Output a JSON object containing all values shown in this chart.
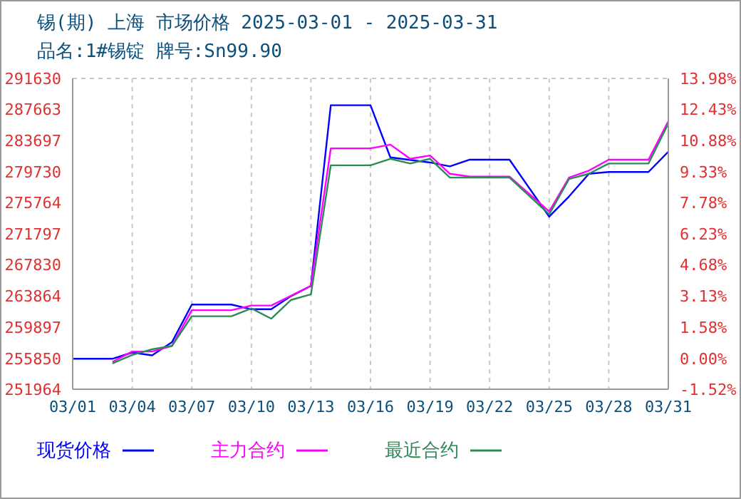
{
  "chart_data": {
    "type": "line",
    "title": "锡(期) 上海 市场价格 2025-03-01 - 2025-03-31",
    "subtitle": "品名:1#锡锭 牌号:Sn99.90",
    "xlim": [
      "2025-03-01",
      "2025-03-31"
    ],
    "xticks": [
      {
        "value": "2025-03-01",
        "label": "03/01"
      },
      {
        "value": "2025-03-04",
        "label": "03/04"
      },
      {
        "value": "2025-03-07",
        "label": "03/07"
      },
      {
        "value": "2025-03-10",
        "label": "03/10"
      },
      {
        "value": "2025-03-13",
        "label": "03/13"
      },
      {
        "value": "2025-03-16",
        "label": "03/16"
      },
      {
        "value": "2025-03-19",
        "label": "03/19"
      },
      {
        "value": "2025-03-22",
        "label": "03/22"
      },
      {
        "value": "2025-03-25",
        "label": "03/25"
      },
      {
        "value": "2025-03-28",
        "label": "03/28"
      },
      {
        "value": "2025-03-31",
        "label": "03/31"
      }
    ],
    "ylim": [
      251964,
      291630
    ],
    "yticks": [
      251964,
      255850,
      259897,
      263864,
      267830,
      271797,
      275764,
      279730,
      283697,
      287663,
      291630
    ],
    "y2lim": [
      -1.52,
      13.98
    ],
    "y2ticks": [
      {
        "value": -1.52,
        "label": "-1.52%"
      },
      {
        "value": 0,
        "label": "0.00%"
      },
      {
        "value": 1.58,
        "label": "1.58%"
      },
      {
        "value": 3.13,
        "label": "3.13%"
      },
      {
        "value": 4.68,
        "label": "4.68%"
      },
      {
        "value": 6.23,
        "label": "6.23%"
      },
      {
        "value": 7.78,
        "label": "7.78%"
      },
      {
        "value": 9.33,
        "label": "9.33%"
      },
      {
        "value": 10.88,
        "label": "10.88%"
      },
      {
        "value": 12.43,
        "label": "12.43%"
      },
      {
        "value": 13.98,
        "label": "13.98%"
      }
    ],
    "grid": true,
    "legend": "bottom",
    "marker": "none",
    "line_style": "solid",
    "series": [
      {
        "name": "现货价格",
        "color": "#0000ff",
        "x": [
          "2025-03-01",
          "2025-03-03",
          "2025-03-04",
          "2025-03-05",
          "2025-03-06",
          "2025-03-07",
          "2025-03-09",
          "2025-03-10",
          "2025-03-11",
          "2025-03-12",
          "2025-03-13",
          "2025-03-14",
          "2025-03-16",
          "2025-03-17",
          "2025-03-19",
          "2025-03-20",
          "2025-03-21",
          "2025-03-23",
          "2025-03-25",
          "2025-03-26",
          "2025-03-27",
          "2025-03-28",
          "2025-03-30",
          "2025-03-31"
        ],
        "values": [
          255850,
          255850,
          256650,
          256280,
          257960,
          262770,
          262770,
          262170,
          262170,
          263850,
          265160,
          288210,
          288210,
          281550,
          280900,
          280410,
          281260,
          281260,
          273985,
          276570,
          279460,
          279690,
          279690,
          282270
        ]
      },
      {
        "name": "主力合约",
        "color": "#ff00ff",
        "x": [
          "2025-03-03",
          "2025-03-04",
          "2025-03-05",
          "2025-03-06",
          "2025-03-07",
          "2025-03-09",
          "2025-03-10",
          "2025-03-11",
          "2025-03-13",
          "2025-03-14",
          "2025-03-16",
          "2025-03-17",
          "2025-03-18",
          "2025-03-19",
          "2025-03-20",
          "2025-03-21",
          "2025-03-23",
          "2025-03-25",
          "2025-03-26",
          "2025-03-27",
          "2025-03-28",
          "2025-03-30",
          "2025-03-31"
        ],
        "values": [
          255440,
          256770,
          256770,
          257490,
          262050,
          262050,
          262640,
          262640,
          265160,
          282700,
          282700,
          283180,
          281370,
          281790,
          279460,
          279100,
          279100,
          274650,
          278970,
          279870,
          281260,
          281260,
          286170
        ]
      },
      {
        "name": "最近合约",
        "color": "#2e8b57",
        "x": [
          "2025-03-03",
          "2025-03-04",
          "2025-03-05",
          "2025-03-06",
          "2025-03-07",
          "2025-03-09",
          "2025-03-10",
          "2025-03-11",
          "2025-03-12",
          "2025-03-13",
          "2025-03-14",
          "2025-03-16",
          "2025-03-17",
          "2025-03-18",
          "2025-03-19",
          "2025-03-20",
          "2025-03-23",
          "2025-03-25",
          "2025-03-26",
          "2025-03-27",
          "2025-03-28",
          "2025-03-30",
          "2025-03-31"
        ],
        "values": [
          255260,
          256340,
          257060,
          257490,
          261280,
          261280,
          262280,
          260970,
          263360,
          264080,
          280540,
          280540,
          281370,
          280770,
          281370,
          278970,
          278970,
          274290,
          278790,
          279460,
          280770,
          280770,
          285870
        ]
      }
    ]
  }
}
